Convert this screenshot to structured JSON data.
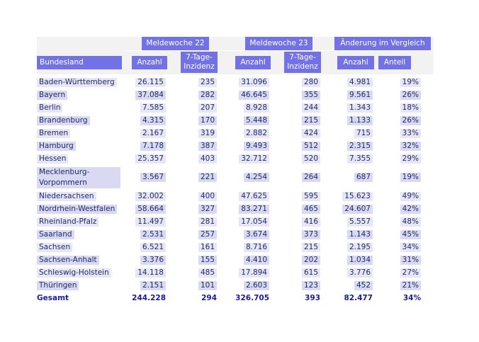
{
  "header": {
    "bundesland": "Bundesland",
    "groups": [
      "Meldewoche 22",
      "Meldewoche 23",
      "Änderung im Vergleich"
    ],
    "columns": [
      "Anzahl",
      "7-Tage-Inzidenz",
      "Anzahl",
      "7-Tage-Inzidenz",
      "Anzahl",
      "Anteil"
    ]
  },
  "rows": [
    {
      "land": "Baden-Württemberg",
      "a22": "26.115",
      "i22": "235",
      "a23": "31.096",
      "i23": "280",
      "diff": "4.981",
      "share": "19%"
    },
    {
      "land": "Bayern",
      "a22": "37.084",
      "i22": "282",
      "a23": "46.645",
      "i23": "355",
      "diff": "9.561",
      "share": "26%"
    },
    {
      "land": "Berlin",
      "a22": "7.585",
      "i22": "207",
      "a23": "8.928",
      "i23": "244",
      "diff": "1.343",
      "share": "18%"
    },
    {
      "land": "Brandenburg",
      "a22": "4.315",
      "i22": "170",
      "a23": "5.448",
      "i23": "215",
      "diff": "1.133",
      "share": "26%"
    },
    {
      "land": "Bremen",
      "a22": "2.167",
      "i22": "319",
      "a23": "2.882",
      "i23": "424",
      "diff": "715",
      "share": "33%"
    },
    {
      "land": "Hamburg",
      "a22": "7.178",
      "i22": "387",
      "a23": "9.493",
      "i23": "512",
      "diff": "2.315",
      "share": "32%"
    },
    {
      "land": "Hessen",
      "a22": "25.357",
      "i22": "403",
      "a23": "32.712",
      "i23": "520",
      "diff": "7.355",
      "share": "29%"
    },
    {
      "land": "Mecklenburg-Vorpommern",
      "a22": "3.567",
      "i22": "221",
      "a23": "4.254",
      "i23": "264",
      "diff": "687",
      "share": "19%"
    },
    {
      "land": "Niedersachsen",
      "a22": "32.002",
      "i22": "400",
      "a23": "47.625",
      "i23": "595",
      "diff": "15.623",
      "share": "49%"
    },
    {
      "land": "Nordrhein-Westfalen",
      "a22": "58.664",
      "i22": "327",
      "a23": "83.271",
      "i23": "465",
      "diff": "24.607",
      "share": "42%"
    },
    {
      "land": "Rheinland-Pfalz",
      "a22": "11.497",
      "i22": "281",
      "a23": "17.054",
      "i23": "416",
      "diff": "5.557",
      "share": "48%"
    },
    {
      "land": "Saarland",
      "a22": "2.531",
      "i22": "257",
      "a23": "3.674",
      "i23": "373",
      "diff": "1.143",
      "share": "45%"
    },
    {
      "land": "Sachsen",
      "a22": "6.521",
      "i22": "161",
      "a23": "8.716",
      "i23": "215",
      "diff": "2.195",
      "share": "34%"
    },
    {
      "land": "Sachsen-Anhalt",
      "a22": "3.376",
      "i22": "155",
      "a23": "4.410",
      "i23": "202",
      "diff": "1.034",
      "share": "31%"
    },
    {
      "land": "Schleswig-Holstein",
      "a22": "14.118",
      "i22": "485",
      "a23": "17.894",
      "i23": "615",
      "diff": "3.776",
      "share": "27%"
    },
    {
      "land": "Thüringen",
      "a22": "2.151",
      "i22": "101",
      "a23": "2.603",
      "i23": "123",
      "diff": "452",
      "share": "21%"
    }
  ],
  "total": {
    "land": "Gesamt",
    "a22": "244.228",
    "i22": "294",
    "a23": "326.705",
    "i23": "393",
    "diff": "82.477",
    "share": "34%"
  },
  "colors": {
    "header_box": "#7272e6",
    "highlight": "#e6e6f7",
    "text": "#1f2a66",
    "total_text": "#1a1aa0"
  }
}
